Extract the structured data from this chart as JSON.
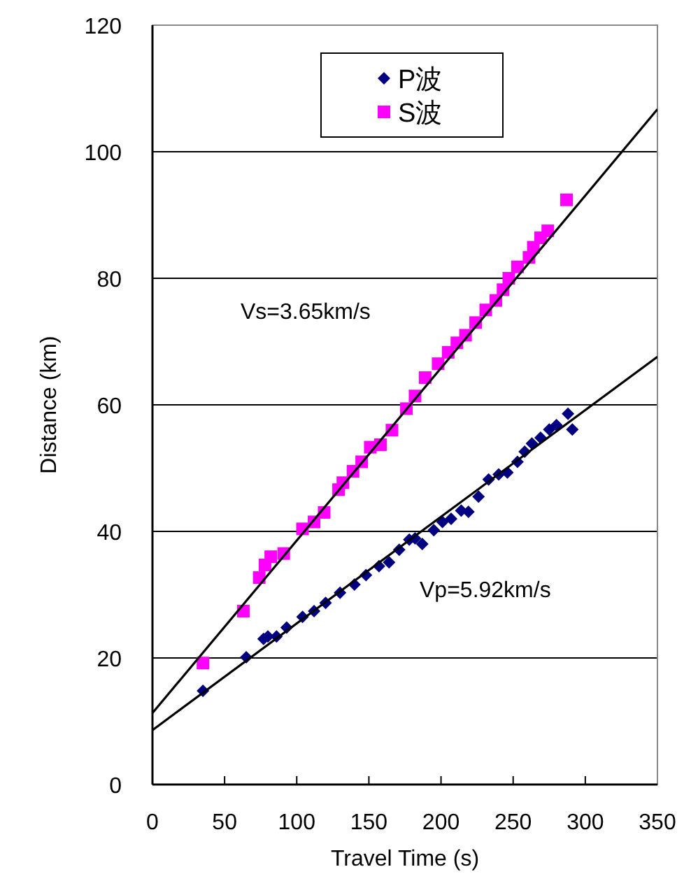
{
  "chart_data": {
    "type": "scatter",
    "xlabel": "Travel Time (s)",
    "ylabel": "Distance (km)",
    "xlim": [
      0,
      350
    ],
    "xticks": [
      0,
      50,
      100,
      150,
      200,
      250,
      300,
      350
    ],
    "ylim": [
      0,
      120
    ],
    "yticks": [
      0,
      20,
      40,
      60,
      80,
      100,
      120
    ],
    "grid": "y",
    "legend": "top",
    "series": [
      {
        "name": "P波",
        "marker": "diamond",
        "color": "#000080",
        "x": [
          35,
          65,
          77,
          80,
          86,
          93,
          104,
          112,
          120,
          130,
          140,
          148,
          157,
          164,
          171,
          178,
          182,
          187,
          195,
          201,
          207,
          214,
          219,
          226,
          233,
          240,
          246,
          253,
          258,
          263,
          269,
          275,
          280,
          288,
          291
        ],
        "values": [
          14.8,
          20.1,
          23,
          23.4,
          23.4,
          24.8,
          26.5,
          27.4,
          28.7,
          30.3,
          31.6,
          33.1,
          34.5,
          35.1,
          37.1,
          38.7,
          38.9,
          38,
          40.2,
          41.5,
          42,
          43.3,
          43.1,
          45.5,
          48.2,
          49,
          49.3,
          51,
          52.6,
          53.9,
          54.8,
          56.1,
          56.8,
          58.6,
          56.1
        ]
      },
      {
        "name": "S波",
        "marker": "square",
        "color": "#ff00ff",
        "x": [
          35,
          63,
          74,
          78,
          82,
          91,
          104,
          112,
          119,
          129,
          132,
          139,
          145,
          151,
          158,
          166,
          176,
          182,
          189,
          198,
          205,
          211,
          217,
          224,
          231,
          238,
          243,
          247,
          253,
          261,
          264,
          269,
          274,
          287
        ],
        "values": [
          19.2,
          27.4,
          32.7,
          34.7,
          36,
          36.5,
          40.4,
          41.5,
          43,
          46.6,
          47.7,
          49.5,
          51,
          53.3,
          53.7,
          56,
          59.4,
          61.4,
          64.3,
          66.5,
          68.3,
          69.8,
          71,
          73,
          75,
          76.5,
          78.2,
          80,
          81.8,
          83.3,
          84.9,
          86.4,
          87.5,
          92.4
        ]
      },
      {
        "type": "line",
        "color": "#000000",
        "x": [
          0,
          350
        ],
        "values": [
          8.6,
          67.6
        ]
      },
      {
        "type": "line",
        "color": "#000000",
        "x": [
          0,
          350
        ],
        "values": [
          11.3,
          106.7
        ]
      }
    ],
    "annotations": [
      "Vs=3.65km/s",
      "Vp=5.92km/s"
    ]
  }
}
